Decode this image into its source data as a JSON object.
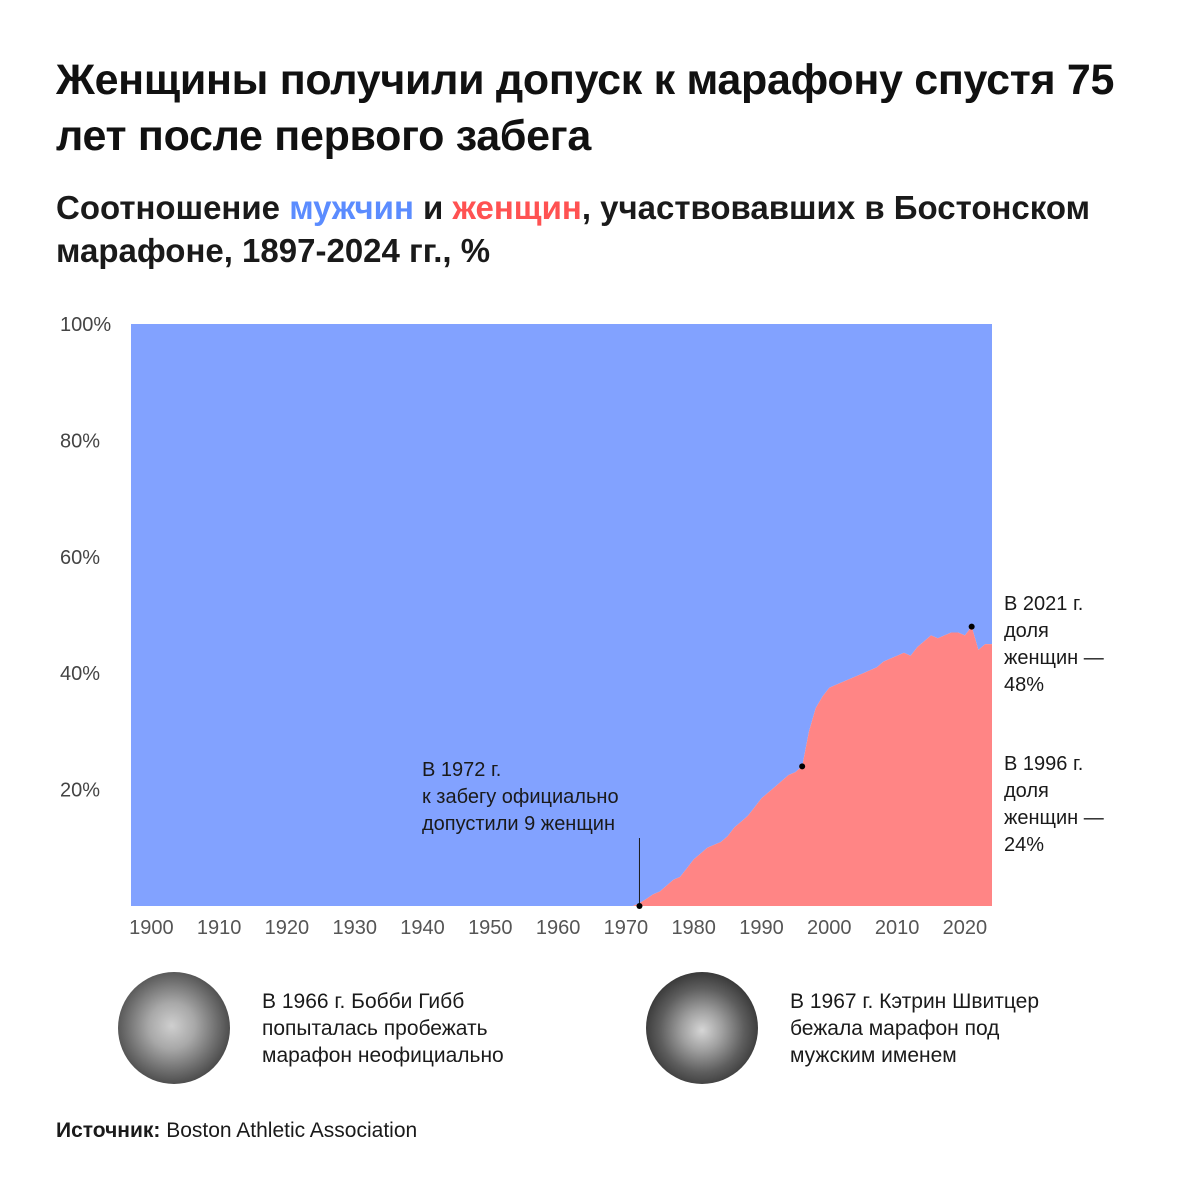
{
  "title": "Женщины получили допуск к марафону спустя 75 лет после первого забега",
  "subtitle": {
    "part1": "Соотношение ",
    "men_word": "мужчин",
    "part2": " и ",
    "women_word": "женщин",
    "part3": ", участвовавших в Бостонском марафоне, 1897-2024 гг., %"
  },
  "colors": {
    "men": "#82a2ff",
    "women": "#ff8585",
    "men_text": "#5b8cff",
    "women_text": "#ff5252"
  },
  "chart_data": {
    "type": "area",
    "stacked": true,
    "percent": true,
    "xlim": [
      1897,
      2024
    ],
    "ylim": [
      0,
      100
    ],
    "x_ticks": [
      "1900",
      "1910",
      "1920",
      "1930",
      "1940",
      "1950",
      "1960",
      "1970",
      "1980",
      "1990",
      "2000",
      "2010",
      "2020"
    ],
    "y_ticks": [
      "100%",
      "80%",
      "60%",
      "40%",
      "20%"
    ],
    "series": [
      {
        "name": "мужчин",
        "color": "#82a2ff",
        "values": [
          [
            1897,
            100
          ],
          [
            1971,
            100
          ],
          [
            1972,
            99.5
          ],
          [
            1973,
            98.8
          ],
          [
            1974,
            98
          ],
          [
            1975,
            97.5
          ],
          [
            1976,
            96.5
          ],
          [
            1977,
            95.5
          ],
          [
            1978,
            95
          ],
          [
            1979,
            93.5
          ],
          [
            1980,
            92
          ],
          [
            1981,
            91
          ],
          [
            1982,
            90
          ],
          [
            1983,
            89.5
          ],
          [
            1984,
            89
          ],
          [
            1985,
            88
          ],
          [
            1986,
            86.5
          ],
          [
            1987,
            85.5
          ],
          [
            1988,
            84.5
          ],
          [
            1989,
            83
          ],
          [
            1990,
            81.5
          ],
          [
            1991,
            80.5
          ],
          [
            1992,
            79.5
          ],
          [
            1993,
            78.5
          ],
          [
            1994,
            77.5
          ],
          [
            1995,
            77
          ],
          [
            1996,
            76
          ],
          [
            1997,
            70
          ],
          [
            1998,
            66
          ],
          [
            1999,
            64
          ],
          [
            2000,
            62.5
          ],
          [
            2001,
            62
          ],
          [
            2002,
            61.5
          ],
          [
            2003,
            61
          ],
          [
            2004,
            60.5
          ],
          [
            2005,
            60
          ],
          [
            2006,
            59.5
          ],
          [
            2007,
            59
          ],
          [
            2008,
            58
          ],
          [
            2009,
            57.5
          ],
          [
            2010,
            57
          ],
          [
            2011,
            56.5
          ],
          [
            2012,
            57
          ],
          [
            2013,
            55.5
          ],
          [
            2014,
            54.5
          ],
          [
            2015,
            53.5
          ],
          [
            2016,
            54
          ],
          [
            2017,
            53.5
          ],
          [
            2018,
            53
          ],
          [
            2019,
            53
          ],
          [
            2020,
            53.5
          ],
          [
            2021,
            52
          ],
          [
            2022,
            56
          ],
          [
            2023,
            55
          ],
          [
            2024,
            55
          ]
        ]
      },
      {
        "name": "женщин",
        "color": "#ff8585",
        "values": [
          [
            1897,
            0
          ],
          [
            1971,
            0
          ],
          [
            1972,
            0.5
          ],
          [
            1973,
            1.2
          ],
          [
            1974,
            2
          ],
          [
            1975,
            2.5
          ],
          [
            1976,
            3.5
          ],
          [
            1977,
            4.5
          ],
          [
            1978,
            5
          ],
          [
            1979,
            6.5
          ],
          [
            1980,
            8
          ],
          [
            1981,
            9
          ],
          [
            1982,
            10
          ],
          [
            1983,
            10.5
          ],
          [
            1984,
            11
          ],
          [
            1985,
            12
          ],
          [
            1986,
            13.5
          ],
          [
            1987,
            14.5
          ],
          [
            1988,
            15.5
          ],
          [
            1989,
            17
          ],
          [
            1990,
            18.5
          ],
          [
            1991,
            19.5
          ],
          [
            1992,
            20.5
          ],
          [
            1993,
            21.5
          ],
          [
            1994,
            22.5
          ],
          [
            1995,
            23
          ],
          [
            1996,
            24
          ],
          [
            1997,
            30
          ],
          [
            1998,
            34
          ],
          [
            1999,
            36
          ],
          [
            2000,
            37.5
          ],
          [
            2001,
            38
          ],
          [
            2002,
            38.5
          ],
          [
            2003,
            39
          ],
          [
            2004,
            39.5
          ],
          [
            2005,
            40
          ],
          [
            2006,
            40.5
          ],
          [
            2007,
            41
          ],
          [
            2008,
            42
          ],
          [
            2009,
            42.5
          ],
          [
            2010,
            43
          ],
          [
            2011,
            43.5
          ],
          [
            2012,
            43
          ],
          [
            2013,
            44.5
          ],
          [
            2014,
            45.5
          ],
          [
            2015,
            46.5
          ],
          [
            2016,
            46
          ],
          [
            2017,
            46.5
          ],
          [
            2018,
            47
          ],
          [
            2019,
            47
          ],
          [
            2020,
            46.5
          ],
          [
            2021,
            48
          ],
          [
            2022,
            44
          ],
          [
            2023,
            45
          ],
          [
            2024,
            45
          ]
        ]
      }
    ],
    "annotations": [
      {
        "x": 1972,
        "y": 0,
        "lines": [
          "В 1972 г.",
          "к забегу официально",
          "допустили 9 женщин"
        ]
      },
      {
        "x": 1996,
        "y": 24,
        "lines": [
          "В 1996 г.",
          "доля",
          "женщин —",
          "24%"
        ]
      },
      {
        "x": 2021,
        "y": 48,
        "lines": [
          "В 2021 г.",
          "доля",
          "женщин  —",
          "48%"
        ]
      }
    ]
  },
  "captions": [
    {
      "text": "В 1966 г. Бобби Гибб\nпопыталась пробежать\nмарафон неофициально"
    },
    {
      "text": "В 1967 г. Кэтрин Швитцер\nбежала марафон под\nмужским именем"
    }
  ],
  "source": {
    "label": "Источник:",
    "text": " Boston Athletic Association"
  }
}
